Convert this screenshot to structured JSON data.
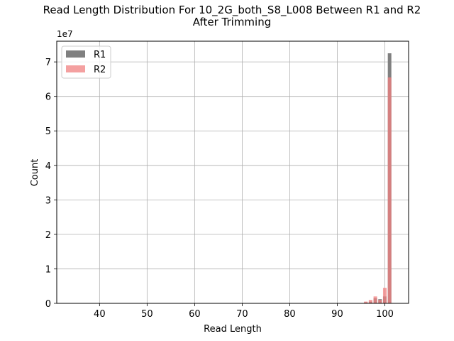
{
  "chart_data": {
    "type": "bar",
    "title": "Read Length Distribution For 10_2G_both_S8_L008 Between R1 and R2",
    "subtitle": "After Trimming",
    "xlabel": "Read Length",
    "ylabel": "Count",
    "y_multiplier_label": "1e7",
    "xlim": [
      31,
      105
    ],
    "ylim": [
      0,
      7.6
    ],
    "y_unit": 10000000,
    "x_ticks": [
      40,
      50,
      60,
      70,
      80,
      90,
      100
    ],
    "y_ticks": [
      0,
      1,
      2,
      3,
      4,
      5,
      6,
      7
    ],
    "grid": true,
    "legend_position": "top-left",
    "bin_width": 0.75,
    "series": [
      {
        "name": "R1",
        "color": "#808080",
        "points": [
          {
            "x": 96,
            "y": 0.03
          },
          {
            "x": 97,
            "y": 0.05
          },
          {
            "x": 98,
            "y": 0.15
          },
          {
            "x": 99,
            "y": 0.12
          },
          {
            "x": 100,
            "y": 0.2
          },
          {
            "x": 101,
            "y": 7.25
          }
        ]
      },
      {
        "name": "R2",
        "color": "#f08080",
        "points": [
          {
            "x": 96,
            "y": 0.05
          },
          {
            "x": 97,
            "y": 0.1
          },
          {
            "x": 98,
            "y": 0.2
          },
          {
            "x": 99,
            "y": 0.1
          },
          {
            "x": 100,
            "y": 0.45
          },
          {
            "x": 101,
            "y": 6.55
          }
        ]
      }
    ]
  }
}
